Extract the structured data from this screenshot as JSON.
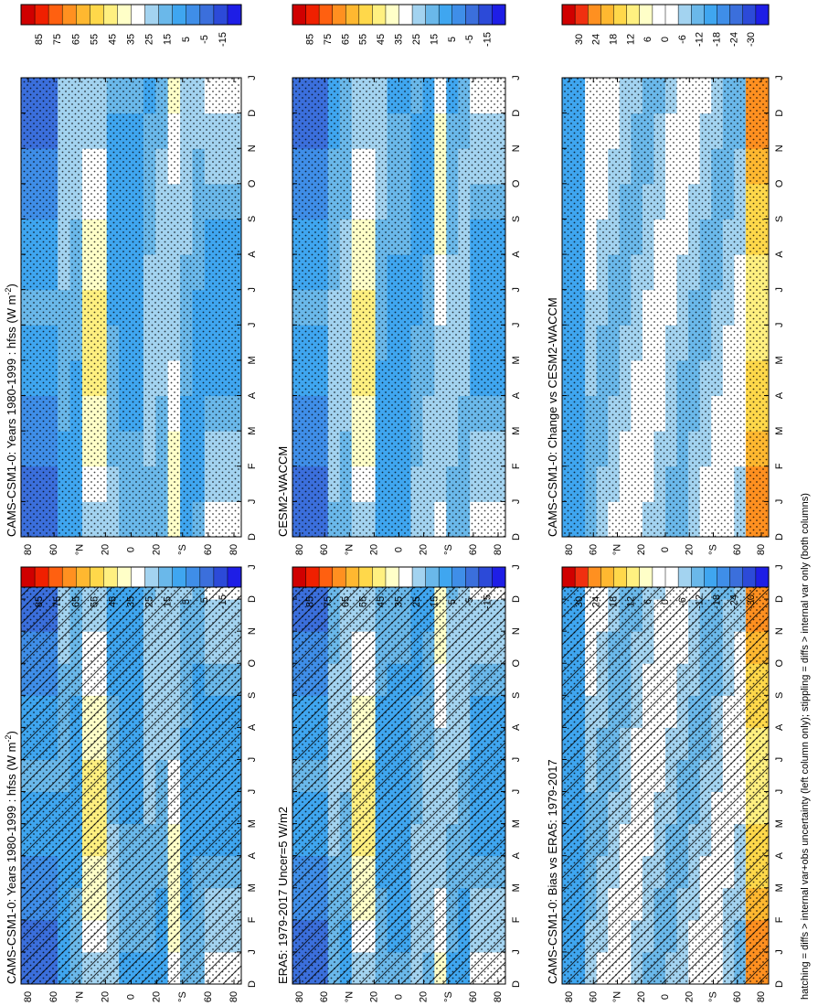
{
  "figure": {
    "footnote": "hatching = diffs > internal var+obs uncertainty (left column only); stippling = diffs > internal var only (both columns)"
  },
  "chart_data": [
    {
      "type": "heatmap",
      "id": "p1",
      "title": "CAMS-CSM1-0: Years 1980-1999 : hfss (W m",
      "title_sup": "-2",
      "title_tail": ")",
      "x": [
        "D",
        "J",
        "F",
        "M",
        "A",
        "M",
        "J",
        "J",
        "A",
        "S",
        "O",
        "N",
        "D",
        "J"
      ],
      "y_ticks": [
        "80",
        "60",
        "°N",
        "20",
        "0",
        "20",
        "°S",
        "60",
        "80"
      ],
      "colorbar": [
        "85",
        "75",
        "65",
        "55",
        "45",
        "35",
        "25",
        "15",
        "5",
        "-5",
        "-15"
      ],
      "zmin": -20,
      "zmax": 90,
      "hatching": true,
      "stippling": true,
      "cmap": "hfss"
    },
    {
      "type": "heatmap",
      "id": "p2",
      "title": "CAMS-CSM1-0: Years 1980-1999 : hfss (W m",
      "title_sup": "-2",
      "title_tail": ")",
      "x": [
        "D",
        "J",
        "F",
        "M",
        "A",
        "M",
        "J",
        "J",
        "A",
        "S",
        "O",
        "N",
        "D",
        "J"
      ],
      "y_ticks": [
        "80",
        "60",
        "°N",
        "20",
        "0",
        "20",
        "°S",
        "60",
        "80"
      ],
      "colorbar": [
        "85",
        "75",
        "65",
        "55",
        "45",
        "35",
        "25",
        "15",
        "5",
        "-5",
        "-15"
      ],
      "zmin": -20,
      "zmax": 90,
      "hatching": false,
      "stippling": true,
      "cmap": "hfss"
    },
    {
      "type": "heatmap",
      "id": "p3",
      "title": "ERA5: 1979-2017 Uncer=5 W/m2",
      "title_sup": "",
      "title_tail": "",
      "x": [
        "D",
        "J",
        "F",
        "M",
        "A",
        "M",
        "J",
        "J",
        "A",
        "S",
        "O",
        "N",
        "D",
        "J"
      ],
      "y_ticks": [
        "80",
        "60",
        "°N",
        "20",
        "0",
        "20",
        "°S",
        "60",
        "80"
      ],
      "colorbar": [
        "85",
        "75",
        "65",
        "55",
        "45",
        "35",
        "25",
        "15",
        "5",
        "-5",
        "-15"
      ],
      "zmin": -20,
      "zmax": 90,
      "hatching": true,
      "stippling": true,
      "cmap": "hfss"
    },
    {
      "type": "heatmap",
      "id": "p4",
      "title": "CESM2-WACCM",
      "title_sup": "",
      "title_tail": "",
      "x": [
        "D",
        "J",
        "F",
        "M",
        "A",
        "M",
        "J",
        "J",
        "A",
        "S",
        "O",
        "N",
        "D",
        "J"
      ],
      "y_ticks": [
        "80",
        "60",
        "°N",
        "20",
        "0",
        "20",
        "°S",
        "60",
        "80"
      ],
      "colorbar": [
        "85",
        "75",
        "65",
        "55",
        "45",
        "35",
        "25",
        "15",
        "5",
        "-5",
        "-15"
      ],
      "zmin": -20,
      "zmax": 90,
      "hatching": false,
      "stippling": true,
      "cmap": "hfss"
    },
    {
      "type": "heatmap",
      "id": "p5",
      "title": "CAMS-CSM1-0: Bias vs ERA5: 1979-2017",
      "title_sup": "",
      "title_tail": "",
      "x": [
        "D",
        "J",
        "F",
        "M",
        "A",
        "M",
        "J",
        "J",
        "A",
        "S",
        "O",
        "N",
        "D",
        "J"
      ],
      "y_ticks": [
        "80",
        "60",
        "°N",
        "20",
        "0",
        "20",
        "°S",
        "60",
        "80"
      ],
      "colorbar": [
        "30",
        "24",
        "18",
        "12",
        "6",
        "0",
        "-6",
        "-12",
        "-18",
        "-24",
        "-30"
      ],
      "zmin": -35,
      "zmax": 35,
      "hatching": true,
      "stippling": true,
      "cmap": "diff"
    },
    {
      "type": "heatmap",
      "id": "p6",
      "title": "CAMS-CSM1-0: Change vs CESM2-WACCM",
      "title_sup": "",
      "title_tail": "",
      "x": [
        "D",
        "J",
        "F",
        "M",
        "A",
        "M",
        "J",
        "J",
        "A",
        "S",
        "O",
        "N",
        "D",
        "J"
      ],
      "y_ticks": [
        "80",
        "60",
        "°N",
        "20",
        "0",
        "20",
        "°S",
        "60",
        "80"
      ],
      "colorbar": [
        "30",
        "24",
        "18",
        "12",
        "6",
        "0",
        "-6",
        "-12",
        "-18",
        "-24",
        "-30"
      ],
      "zmin": -35,
      "zmax": 35,
      "hatching": false,
      "stippling": true,
      "cmap": "diff"
    }
  ],
  "colors": {
    "hfss": [
      "#1e1ee6",
      "#2c4ad8",
      "#3b6fdc",
      "#3f8ee8",
      "#3fa6f0",
      "#6ab8ea",
      "#a3d3f0",
      "#ffffff",
      "#ffffc8",
      "#fff080",
      "#ffd84a",
      "#ffb830",
      "#ff9020",
      "#ff6010",
      "#f02000",
      "#d00000"
    ],
    "diff": [
      "#1e1ee6",
      "#2c4ad8",
      "#3b6fdc",
      "#3f8ee8",
      "#3fa6f0",
      "#6ab8ea",
      "#a3d3f0",
      "#ffffff",
      "#ffffff",
      "#ffffc8",
      "#fff080",
      "#ffd84a",
      "#ffb830",
      "#ff9020",
      "#f03010",
      "#d00000"
    ]
  }
}
